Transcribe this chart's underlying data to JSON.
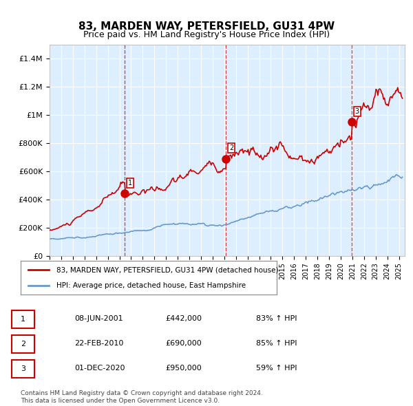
{
  "title": "83, MARDEN WAY, PETERSFIELD, GU31 4PW",
  "subtitle": "Price paid vs. HM Land Registry's House Price Index (HPI)",
  "background_color": "#ffffff",
  "plot_bg_color": "#ddeeff",
  "grid_color": "#ffffff",
  "red_line_color": "#cc0000",
  "blue_line_color": "#6699cc",
  "purchase_marker_color": "#cc0000",
  "vline_color": "#cc0000",
  "ylabel_ticks": [
    "£0",
    "£200K",
    "£400K",
    "£600K",
    "£800K",
    "£1M",
    "£1.2M",
    "£1.4M"
  ],
  "ytick_values": [
    0,
    200000,
    400000,
    600000,
    800000,
    1000000,
    1200000,
    1400000
  ],
  "ylim": [
    0,
    1500000
  ],
  "xlim_start": 1995.0,
  "xlim_end": 2025.5,
  "purchases": [
    {
      "num": 1,
      "year": 2001.44,
      "price": 442000,
      "label": "1",
      "date": "08-JUN-2001",
      "pct": "83%",
      "dir": "↑"
    },
    {
      "num": 2,
      "year": 2010.13,
      "price": 690000,
      "label": "2",
      "date": "22-FEB-2010",
      "pct": "85%",
      "dir": "↑"
    },
    {
      "num": 3,
      "year": 2020.92,
      "price": 950000,
      "label": "3",
      "date": "01-DEC-2020",
      "pct": "59%",
      "dir": "↑"
    }
  ],
  "legend_entries": [
    "83, MARDEN WAY, PETERSFIELD, GU31 4PW (detached house)",
    "HPI: Average price, detached house, East Hampshire"
  ],
  "footer_text": "Contains HM Land Registry data © Crown copyright and database right 2024.\nThis data is licensed under the Open Government Licence v3.0.",
  "table_rows": [
    [
      "1",
      "08-JUN-2001",
      "£442,000",
      "83% ↑ HPI"
    ],
    [
      "2",
      "22-FEB-2010",
      "£690,000",
      "85% ↑ HPI"
    ],
    [
      "3",
      "01-DEC-2020",
      "£950,000",
      "59% ↑ HPI"
    ]
  ]
}
